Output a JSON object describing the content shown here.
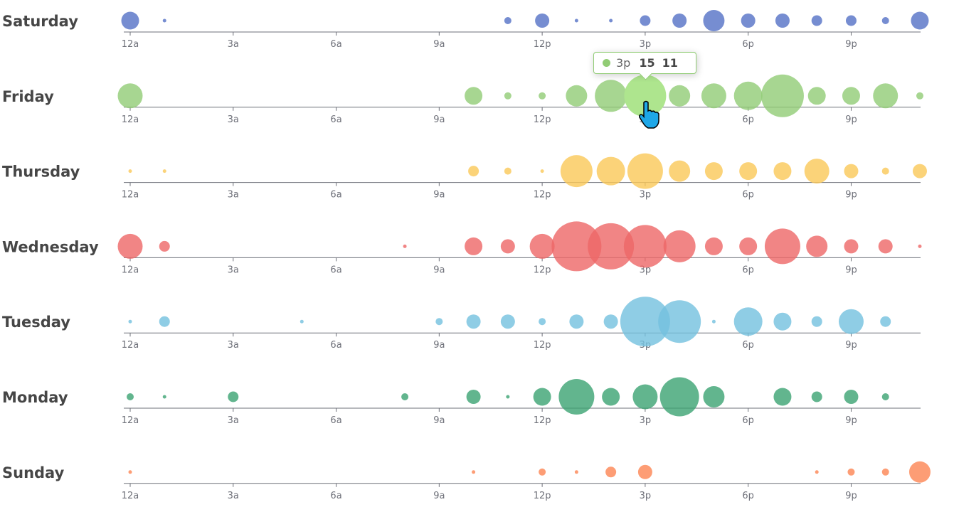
{
  "chart_data": {
    "type": "scatter",
    "title": "",
    "hours": [
      "12a",
      "1a",
      "2a",
      "3a",
      "4a",
      "5a",
      "6a",
      "7a",
      "8a",
      "9a",
      "10a",
      "11a",
      "12p",
      "1p",
      "2p",
      "3p",
      "4p",
      "5p",
      "6p",
      "7p",
      "8p",
      "9p",
      "10p",
      "11p"
    ],
    "tick_labels": [
      "12a",
      "3a",
      "6a",
      "9a",
      "12p",
      "3p",
      "6p",
      "9p"
    ],
    "days": [
      "Saturday",
      "Friday",
      "Thursday",
      "Wednesday",
      "Tuesday",
      "Monday",
      "Sunday"
    ],
    "colors": [
      "#5470c6",
      "#91cc75",
      "#fac858",
      "#ee6666",
      "#73c0de",
      "#3ba272",
      "#fc8452"
    ],
    "series": [
      {
        "name": "Saturday",
        "values": [
          5,
          1,
          0,
          0,
          0,
          0,
          0,
          0,
          0,
          0,
          0,
          2,
          4,
          1,
          1,
          3,
          4,
          6,
          4,
          4,
          3,
          3,
          2,
          5
        ]
      },
      {
        "name": "Friday",
        "values": [
          7,
          0,
          0,
          0,
          0,
          0,
          0,
          0,
          0,
          0,
          5,
          2,
          2,
          6,
          9,
          11,
          6,
          7,
          8,
          12,
          5,
          5,
          7,
          2
        ]
      },
      {
        "name": "Thursday",
        "values": [
          1,
          1,
          0,
          0,
          0,
          0,
          0,
          0,
          0,
          0,
          3,
          2,
          1,
          9,
          8,
          10,
          6,
          5,
          5,
          5,
          7,
          4,
          2,
          4
        ]
      },
      {
        "name": "Wednesday",
        "values": [
          7,
          3,
          0,
          0,
          0,
          0,
          0,
          0,
          1,
          0,
          5,
          4,
          7,
          14,
          13,
          12,
          9,
          5,
          5,
          10,
          6,
          4,
          4,
          1
        ]
      },
      {
        "name": "Tuesday",
        "values": [
          1,
          3,
          0,
          0,
          0,
          1,
          0,
          0,
          0,
          2,
          4,
          4,
          2,
          4,
          4,
          14,
          12,
          1,
          8,
          5,
          3,
          7,
          3,
          0
        ]
      },
      {
        "name": "Monday",
        "values": [
          2,
          1,
          0,
          3,
          0,
          0,
          0,
          0,
          2,
          0,
          4,
          1,
          5,
          10,
          5,
          7,
          11,
          6,
          0,
          5,
          3,
          4,
          2,
          0
        ]
      },
      {
        "name": "Sunday",
        "values": [
          1,
          0,
          0,
          0,
          0,
          0,
          0,
          0,
          0,
          0,
          1,
          0,
          2,
          1,
          3,
          4,
          0,
          0,
          0,
          0,
          1,
          2,
          2,
          6
        ]
      }
    ],
    "tooltip": {
      "label": "3p",
      "hour_index": "15",
      "value": "11",
      "series": "Friday"
    }
  }
}
